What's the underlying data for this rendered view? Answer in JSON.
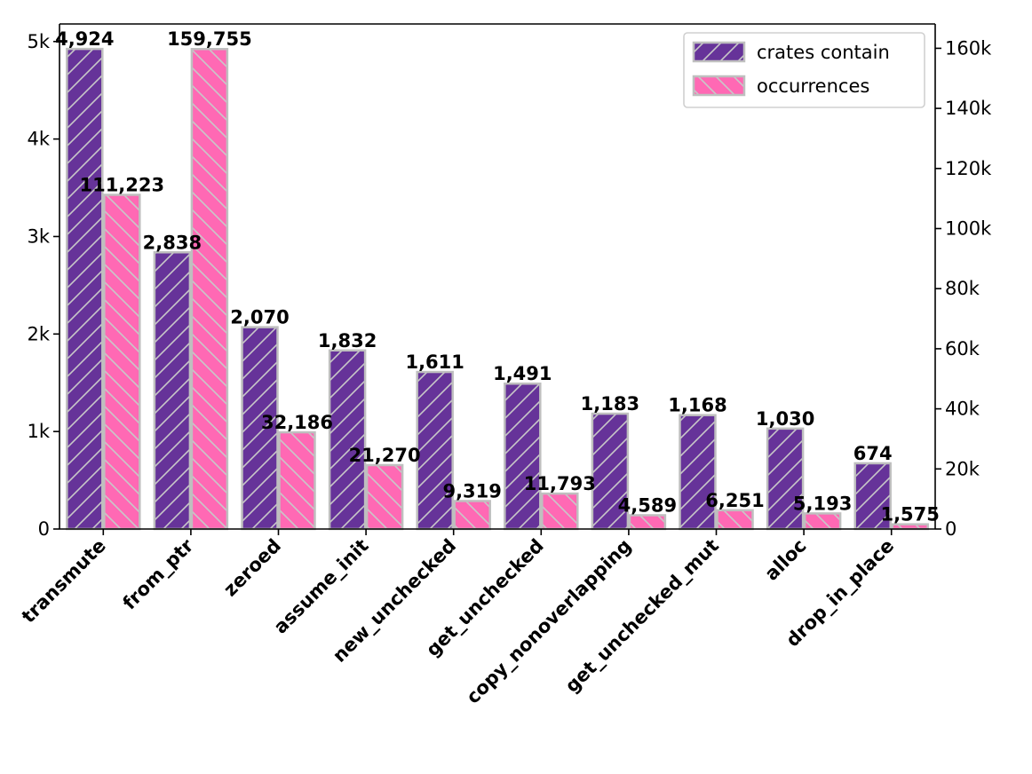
{
  "chart_data": {
    "type": "bar",
    "categories": [
      "transmute",
      "from_ptr",
      "zeroed",
      "assume_init",
      "new_unchecked",
      "get_unchecked",
      "copy_nonoverlapping",
      "get_unchecked_mut",
      "alloc",
      "drop_in_place"
    ],
    "series": [
      {
        "name": "crates contain",
        "axis": "left",
        "color": "#663399",
        "hatch": "forward-diagonal",
        "values": [
          4924,
          2838,
          2070,
          1832,
          1611,
          1491,
          1183,
          1168,
          1030,
          674
        ],
        "labels": [
          "4,924",
          "2,838",
          "2,070",
          "1,832",
          "1,611",
          "1,491",
          "1,183",
          "1,168",
          "1,030",
          "674"
        ]
      },
      {
        "name": "occurrences",
        "axis": "right",
        "color": "#ff69b4",
        "hatch": "back-diagonal",
        "values": [
          111223,
          159755,
          32186,
          21270,
          9319,
          11793,
          4589,
          6251,
          5193,
          1575
        ],
        "labels": [
          "111,223",
          "159,755",
          "32,186",
          "21,270",
          "9,319",
          "11,793",
          "4,589",
          "6,251",
          "5,193",
          "1,575"
        ]
      }
    ],
    "y_left": {
      "lim": [
        0,
        5180
      ],
      "ticks": [
        0,
        1000,
        2000,
        3000,
        4000,
        5000
      ],
      "tick_labels": [
        "0",
        "1k",
        "2k",
        "3k",
        "4k",
        "5k"
      ]
    },
    "y_right": {
      "lim": [
        0,
        168100
      ],
      "ticks": [
        0,
        20000,
        40000,
        60000,
        80000,
        100000,
        120000,
        140000,
        160000
      ],
      "tick_labels": [
        "0",
        "20k",
        "40k",
        "60k",
        "80k",
        "100k",
        "120k",
        "140k",
        "160k"
      ]
    },
    "edge_color": "#bfbfbf",
    "grid": false,
    "legend_position": "top-right"
  }
}
